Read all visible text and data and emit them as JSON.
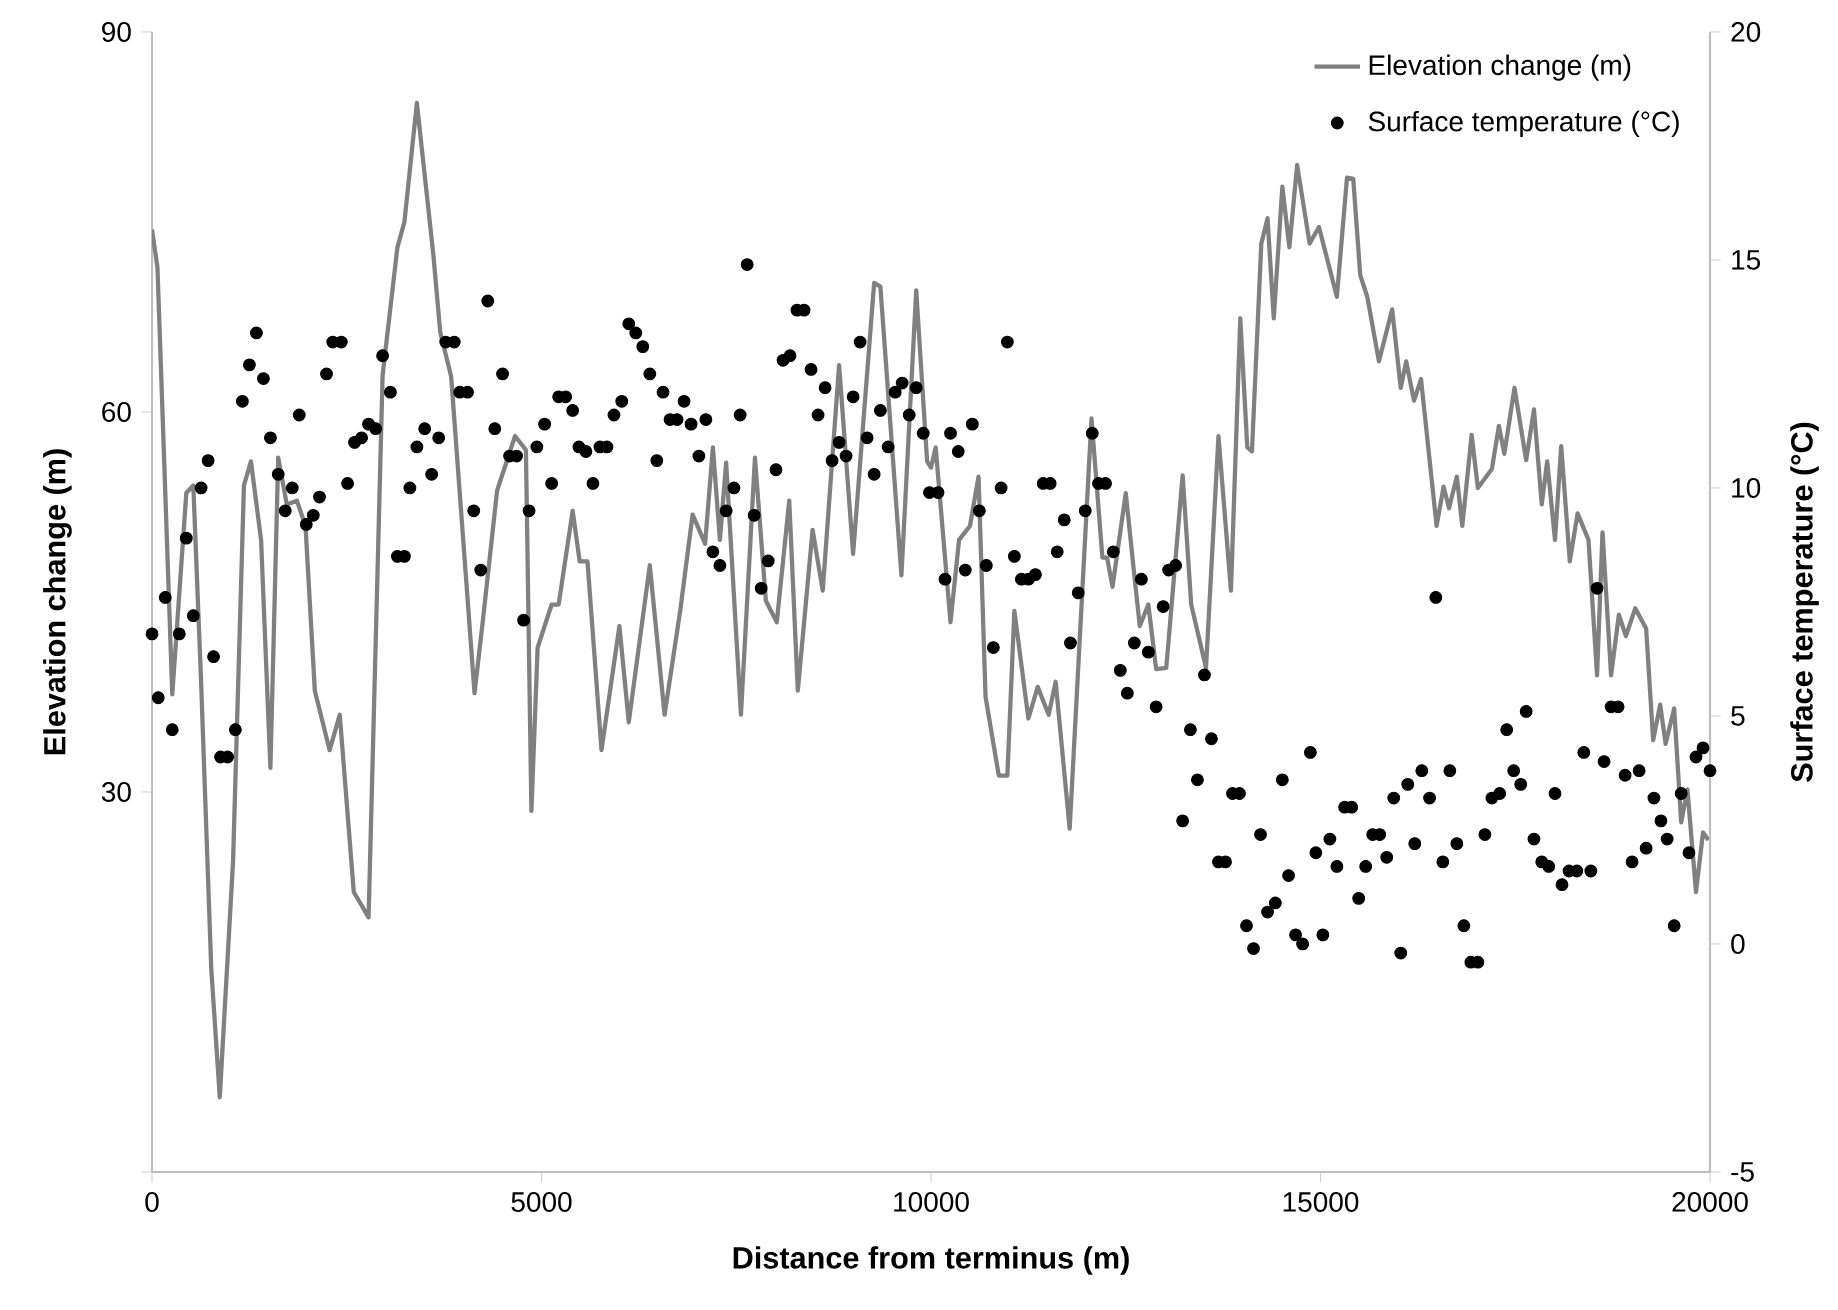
{
  "chart_data": {
    "type": "line",
    "xlabel": "Distance from terminus (m)",
    "ylabel": "Elevation change (m)",
    "y2label": "Surface temperature (°C)",
    "xlim": [
      0,
      20000
    ],
    "xticks": [
      0,
      5000,
      10000,
      15000,
      20000
    ],
    "ylim": [
      0,
      90
    ],
    "yticks": [
      {
        "value": 0,
        "label": null
      },
      30,
      60,
      90
    ],
    "y2lim": [
      -5,
      20
    ],
    "y2ticks": [
      -5,
      0,
      5,
      10,
      15,
      20
    ],
    "legend": "top right",
    "series": [
      {
        "name": "Elevation change (m)",
        "color": "#808080",
        "line_style": "solid",
        "x": [
          0,
          70,
          260,
          440,
          530,
          630,
          760,
          870,
          1040,
          1180,
          1270,
          1400,
          1520,
          1620,
          1730,
          1860,
          1970,
          2090,
          2280,
          2410,
          2590,
          2780,
          2960,
          3150,
          3240,
          3400,
          3610,
          3700,
          3840,
          4140,
          4250,
          4430,
          4660,
          4800,
          4870,
          4950,
          5130,
          5220,
          5400,
          5490,
          5590,
          5770,
          6000,
          6120,
          6390,
          6580,
          6780,
          6940,
          7100,
          7200,
          7290,
          7370,
          7560,
          7740,
          7880,
          8020,
          8180,
          8290,
          8480,
          8610,
          8820,
          9000,
          9270,
          9350,
          9620,
          9810,
          9950,
          10000,
          10060,
          10250,
          10360,
          10500,
          10610,
          10700,
          10870,
          10980,
          11070,
          11250,
          11370,
          11510,
          11600,
          11780,
          12060,
          12200,
          12260,
          12330,
          12500,
          12610,
          12680,
          12790,
          12890,
          13020,
          13230,
          13340,
          13530,
          13690,
          13850,
          13970,
          14060,
          14120,
          14240,
          14320,
          14400,
          14510,
          14600,
          14700,
          14860,
          14980,
          15210,
          15340,
          15420,
          15510,
          15600,
          15750,
          15920,
          16030,
          16100,
          16200,
          16290,
          16490,
          16580,
          16650,
          16750,
          16820,
          16940,
          17020,
          17200,
          17290,
          17360,
          17490,
          17640,
          17740,
          17840,
          17910,
          18010,
          18090,
          18200,
          18300,
          18440,
          18550,
          18620,
          18730,
          18830,
          18920,
          19040,
          19180,
          19270,
          19360,
          19430,
          19540,
          19630,
          19710,
          19820,
          19910,
          19980
        ],
        "values": [
          74.4,
          71.4,
          37.7,
          53.6,
          54.2,
          38.7,
          16.1,
          5.9,
          24.5,
          54.2,
          56.1,
          49.9,
          31.9,
          56.4,
          52.7,
          53.0,
          51.0,
          38.0,
          33.3,
          36.1,
          22.1,
          20.1,
          62.9,
          73.0,
          75.0,
          84.4,
          72.5,
          66.3,
          62.8,
          37.8,
          43.7,
          53.8,
          58.1,
          57.0,
          28.5,
          41.4,
          44.8,
          44.8,
          52.2,
          48.2,
          48.2,
          33.3,
          43.1,
          35.5,
          47.9,
          36.1,
          44.3,
          51.9,
          49.6,
          57.2,
          49.9,
          56.0,
          36.1,
          56.4,
          45.1,
          43.4,
          53.0,
          38.0,
          50.7,
          45.9,
          63.7,
          48.8,
          70.2,
          69.9,
          47.1,
          69.6,
          56.1,
          55.6,
          57.2,
          43.4,
          49.9,
          51.0,
          54.9,
          37.5,
          31.3,
          31.3,
          44.3,
          35.8,
          38.3,
          36.1,
          38.7,
          27.1,
          59.5,
          48.5,
          48.5,
          46.2,
          53.6,
          47.1,
          43.1,
          44.8,
          39.7,
          39.8,
          55.0,
          44.8,
          39.8,
          58.1,
          45.9,
          67.4,
          57.2,
          56.9,
          73.3,
          75.3,
          67.4,
          77.8,
          73.0,
          79.5,
          73.3,
          74.6,
          69.1,
          78.5,
          78.4,
          70.8,
          69.1,
          64.0,
          68.1,
          61.9,
          64.0,
          60.9,
          62.6,
          51.0,
          54.1,
          52.4,
          54.9,
          51.0,
          58.2,
          54.0,
          55.5,
          58.9,
          56.7,
          61.9,
          56.2,
          60.2,
          52.7,
          56.1,
          49.9,
          57.3,
          48.2,
          52.0,
          49.9,
          39.2,
          50.5,
          39.2,
          44.0,
          42.3,
          44.5,
          42.9,
          34.1,
          36.9,
          33.8,
          36.6,
          27.6,
          30.2,
          22.1,
          26.8,
          26.2
        ]
      },
      {
        "name": "Surface temperature (°C)",
        "type": "scatter",
        "axis": "y2",
        "color": "#000000",
        "marker": "circle",
        "x": [
          0,
          80,
          170,
          260,
          350,
          440,
          530,
          630,
          720,
          790,
          880,
          970,
          1070,
          1160,
          1250,
          1340,
          1430,
          1520,
          1620,
          1710,
          1800,
          1890,
          1980,
          2070,
          2150,
          2240,
          2320,
          2430,
          2510,
          2600,
          2690,
          2780,
          2870,
          2960,
          3060,
          3150,
          3240,
          3310,
          3400,
          3500,
          3590,
          3680,
          3770,
          3880,
          3950,
          4050,
          4130,
          4220,
          4310,
          4400,
          4500,
          4590,
          4680,
          4770,
          4840,
          4940,
          5040,
          5130,
          5220,
          5310,
          5400,
          5480,
          5570,
          5660,
          5750,
          5840,
          5930,
          6030,
          6120,
          6210,
          6300,
          6390,
          6480,
          6560,
          6650,
          6740,
          6830,
          6920,
          7020,
          7110,
          7200,
          7290,
          7370,
          7470,
          7550,
          7640,
          7730,
          7820,
          7910,
          8010,
          8100,
          8190,
          8280,
          8370,
          8460,
          8550,
          8640,
          8730,
          8820,
          8910,
          9000,
          9090,
          9180,
          9270,
          9350,
          9450,
          9540,
          9630,
          9720,
          9810,
          9900,
          9980,
          10090,
          10180,
          10250,
          10350,
          10440,
          10530,
          10620,
          10710,
          10800,
          10900,
          10980,
          11070,
          11160,
          11250,
          11340,
          11440,
          11530,
          11620,
          11710,
          11790,
          11890,
          11980,
          12070,
          12150,
          12240,
          12340,
          12430,
          12520,
          12610,
          12700,
          12790,
          12890,
          12980,
          13050,
          13140,
          13230,
          13330,
          13420,
          13510,
          13600,
          13690,
          13780,
          13870,
          13960,
          14050,
          14140,
          14230,
          14320,
          14420,
          14510,
          14590,
          14680,
          14770,
          14870,
          14940,
          15030,
          15120,
          15210,
          15310,
          15400,
          15490,
          15580,
          15670,
          15760,
          15850,
          15940,
          16030,
          16120,
          16210,
          16300,
          16400,
          16480,
          16570,
          16660,
          16750,
          16840,
          16930,
          17020,
          17110,
          17200,
          17300,
          17390,
          17480,
          17570,
          17640,
          17740,
          17840,
          17930,
          18010,
          18100,
          18190,
          18290,
          18380,
          18470,
          18550,
          18640,
          18730,
          18820,
          18910,
          19000,
          19090,
          19180,
          19280,
          19370,
          19450,
          19540,
          19630,
          19730,
          19820,
          19910,
          20000
        ],
        "values": [
          6.8,
          5.4,
          7.6,
          4.7,
          6.8,
          8.9,
          7.2,
          10.0,
          10.6,
          6.3,
          4.1,
          4.1,
          4.7,
          11.9,
          12.7,
          13.4,
          12.4,
          11.1,
          10.3,
          9.5,
          10.0,
          11.6,
          9.2,
          9.4,
          9.8,
          12.5,
          13.2,
          13.2,
          10.1,
          11.0,
          11.1,
          11.4,
          11.3,
          12.9,
          12.1,
          8.5,
          8.5,
          10.0,
          10.9,
          11.3,
          10.3,
          11.1,
          13.2,
          13.2,
          12.1,
          12.1,
          9.5,
          8.2,
          14.1,
          11.3,
          12.5,
          10.7,
          10.7,
          7.1,
          9.5,
          10.9,
          11.4,
          10.1,
          12.0,
          12.0,
          11.7,
          10.9,
          10.8,
          10.1,
          10.9,
          10.9,
          11.6,
          11.9,
          13.6,
          13.4,
          13.1,
          12.5,
          10.6,
          12.1,
          11.5,
          11.5,
          11.9,
          11.4,
          10.7,
          11.5,
          8.6,
          8.3,
          9.5,
          10.0,
          11.6,
          14.9,
          9.4,
          7.8,
          8.4,
          10.4,
          12.8,
          12.9,
          13.9,
          13.9,
          12.6,
          11.6,
          12.2,
          10.6,
          11.0,
          10.7,
          12.0,
          13.2,
          11.1,
          10.3,
          11.7,
          10.9,
          12.1,
          12.3,
          11.6,
          12.2,
          11.2,
          9.9,
          9.9,
          8.0,
          11.2,
          10.8,
          8.2,
          11.4,
          9.5,
          8.3,
          6.5,
          10.0,
          13.2,
          8.5,
          8.0,
          8.0,
          8.1,
          10.1,
          10.1,
          8.6,
          9.3,
          6.6,
          7.7,
          9.5,
          11.2,
          10.1,
          10.1,
          8.6,
          6.0,
          5.5,
          6.6,
          8.0,
          6.4,
          5.2,
          7.4,
          8.2,
          8.3,
          2.7,
          4.7,
          3.6,
          5.9,
          4.5,
          1.8,
          1.8,
          3.3,
          3.3,
          0.4,
          -0.1,
          2.4,
          0.7,
          0.9,
          3.6,
          1.5,
          0.2,
          0.0,
          4.2,
          2.0,
          0.2,
          2.3,
          1.7,
          3.0,
          3.0,
          1.0,
          1.7,
          2.4,
          2.4,
          1.9,
          3.2,
          -0.2,
          3.5,
          2.2,
          3.8,
          3.2,
          7.6,
          1.8,
          3.8,
          2.2,
          0.4,
          -0.4,
          -0.4,
          2.4,
          3.2,
          3.3,
          4.7,
          3.8,
          3.5,
          5.1,
          2.3,
          1.8,
          1.7,
          3.3,
          1.3,
          1.6,
          1.6,
          4.2,
          1.6,
          7.8,
          4.0,
          5.2,
          5.2,
          3.7,
          1.8,
          3.8,
          2.1,
          3.2,
          2.7,
          2.3,
          0.4,
          3.3,
          2.0,
          4.1,
          4.3,
          3.8
        ]
      }
    ]
  }
}
